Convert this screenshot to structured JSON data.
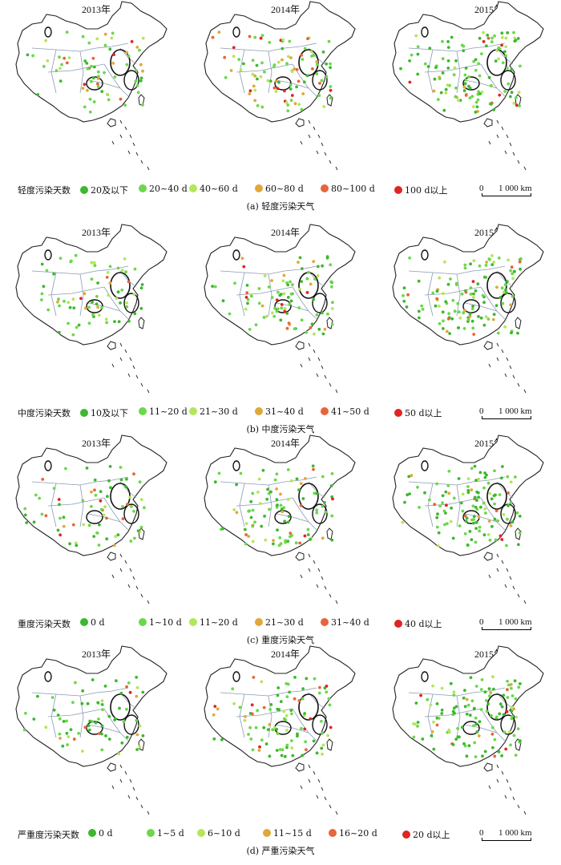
{
  "panels": [
    {
      "years": [
        "2013年",
        "2014年",
        "2015年"
      ],
      "legend_title": "轻度污染天数",
      "legend_items": [
        {
          "label": "20及以下",
          "color": "#3cb82e"
        },
        {
          "label": "20~40 d",
          "color": "#6ad84a"
        },
        {
          "label": "40~60 d",
          "color": "#b4e65a"
        },
        {
          "label": "60~80 d",
          "color": "#e0a83a"
        },
        {
          "label": "80~100 d",
          "color": "#e8643a"
        },
        {
          "label": "100 d以上",
          "color": "#e02424"
        }
      ],
      "scale_zero": "0",
      "scale_label": "1 000 km",
      "caption": "(a)  轻度污染天气"
    },
    {
      "years": [
        "2013年",
        "2014年",
        "2015年"
      ],
      "legend_title": "中度污染天数",
      "legend_items": [
        {
          "label": "10及以下",
          "color": "#3cb82e"
        },
        {
          "label": "11~20 d",
          "color": "#6ad84a"
        },
        {
          "label": "21~30 d",
          "color": "#b4e65a"
        },
        {
          "label": "31~40 d",
          "color": "#e0a83a"
        },
        {
          "label": "41~50 d",
          "color": "#e8643a"
        },
        {
          "label": "50 d以上",
          "color": "#e02424"
        }
      ],
      "scale_zero": "0",
      "scale_label": "1 000 km",
      "caption": "(b)  中度污染天气"
    },
    {
      "years": [
        "2013年",
        "2014年",
        "2015年"
      ],
      "legend_title": "重度污染天数",
      "legend_items": [
        {
          "label": "0 d",
          "color": "#3cb82e"
        },
        {
          "label": "1~10 d",
          "color": "#6ad84a"
        },
        {
          "label": "11~20 d",
          "color": "#b4e65a"
        },
        {
          "label": "21~30 d",
          "color": "#e0a83a"
        },
        {
          "label": "31~40 d",
          "color": "#e8643a"
        },
        {
          "label": "40 d以上",
          "color": "#e02424"
        }
      ],
      "scale_zero": "0",
      "scale_label": "1 000 km",
      "caption": "(c)  重度污染天气"
    },
    {
      "years": [
        "2013年",
        "2014年",
        "2015年"
      ],
      "legend_title": "严重度污染天数",
      "legend_items": [
        {
          "label": "0 d",
          "color": "#3cb82e"
        },
        {
          "label": "1~5 d",
          "color": "#6ad84a"
        },
        {
          "label": "6~10 d",
          "color": "#b4e65a"
        },
        {
          "label": "11~15 d",
          "color": "#e0a83a"
        },
        {
          "label": "16~20 d",
          "color": "#e8643a"
        },
        {
          "label": "20 d以上",
          "color": "#e02424"
        }
      ],
      "scale_zero": "0",
      "scale_label": "1 000 km",
      "caption": "(d)  严重污染天气"
    }
  ]
}
